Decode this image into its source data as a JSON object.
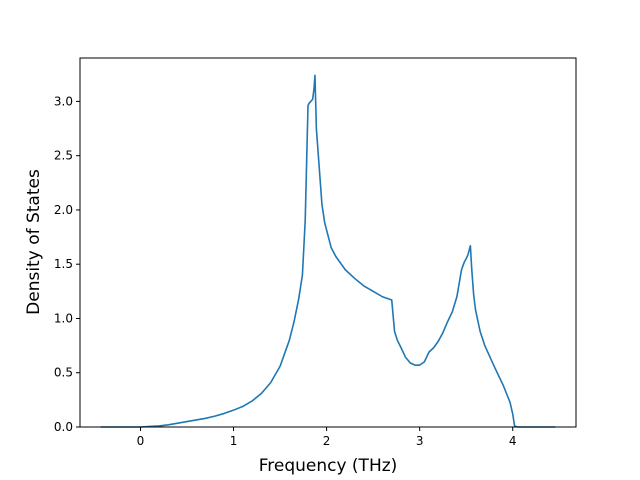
{
  "chart_data": {
    "type": "line",
    "title": "",
    "xlabel": "Frequency (THz)",
    "ylabel": "Density of States",
    "xlim": [
      -0.65,
      4.68
    ],
    "ylim": [
      0.0,
      3.4
    ],
    "xticks": [
      0,
      1,
      2,
      3,
      4
    ],
    "xtick_labels": [
      "0",
      "1",
      "2",
      "3",
      "4"
    ],
    "yticks": [
      0.0,
      0.5,
      1.0,
      1.5,
      2.0,
      2.5,
      3.0
    ],
    "ytick_labels": [
      "0.0",
      "0.5",
      "1.0",
      "1.5",
      "2.0",
      "2.5",
      "3.0"
    ],
    "grid": false,
    "legend": false,
    "line_color": "#1f77b4",
    "series": [
      {
        "x": [
          -0.42,
          0.0,
          0.1,
          0.2,
          0.3,
          0.4,
          0.5,
          0.6,
          0.7,
          0.8,
          0.9,
          1.0,
          1.1,
          1.2,
          1.3,
          1.4,
          1.5,
          1.6,
          1.65,
          1.7,
          1.74,
          1.77,
          1.79,
          1.8,
          1.81,
          1.85,
          1.865,
          1.875,
          1.89,
          1.92,
          1.95,
          1.98,
          2.05,
          2.1,
          2.2,
          2.3,
          2.4,
          2.5,
          2.6,
          2.7,
          2.73,
          2.76,
          2.8,
          2.85,
          2.9,
          2.95,
          3.0,
          3.05,
          3.1,
          3.15,
          3.2,
          3.25,
          3.3,
          3.35,
          3.4,
          3.45,
          3.48,
          3.5,
          3.52,
          3.545,
          3.56,
          3.58,
          3.6,
          3.65,
          3.7,
          3.8,
          3.9,
          3.97,
          4.0,
          4.02,
          4.05,
          4.45
        ],
        "y": [
          0.0,
          0.0,
          0.005,
          0.01,
          0.02,
          0.035,
          0.05,
          0.065,
          0.08,
          0.1,
          0.125,
          0.155,
          0.19,
          0.24,
          0.31,
          0.41,
          0.56,
          0.8,
          0.97,
          1.18,
          1.4,
          1.9,
          2.6,
          2.96,
          2.98,
          3.02,
          3.12,
          3.24,
          2.75,
          2.4,
          2.05,
          1.88,
          1.65,
          1.57,
          1.45,
          1.37,
          1.3,
          1.25,
          1.2,
          1.17,
          0.88,
          0.8,
          0.73,
          0.64,
          0.59,
          0.57,
          0.57,
          0.6,
          0.69,
          0.73,
          0.79,
          0.87,
          0.97,
          1.06,
          1.2,
          1.45,
          1.52,
          1.55,
          1.59,
          1.67,
          1.45,
          1.22,
          1.08,
          0.88,
          0.75,
          0.56,
          0.38,
          0.23,
          0.12,
          0.01,
          0.0,
          0.0
        ]
      }
    ]
  }
}
